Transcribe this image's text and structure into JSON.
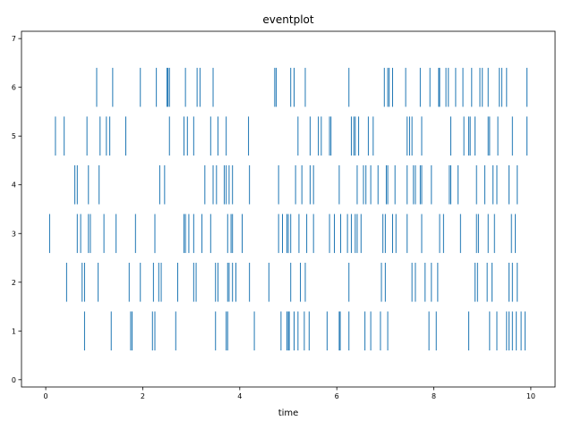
{
  "chart_data": {
    "type": "eventplot",
    "title": "eventplot",
    "xlabel": "time",
    "ylabel": "",
    "xlim": [
      -0.5,
      10.5
    ],
    "ylim": [
      -0.15,
      7.15
    ],
    "x_ticks": [
      0,
      2,
      4,
      6,
      8,
      10
    ],
    "x_tick_labels": [
      "0",
      "2",
      "4",
      "6",
      "8",
      "10"
    ],
    "y_ticks": [
      0,
      1,
      2,
      3,
      4,
      5,
      6,
      7
    ],
    "y_tick_labels": [
      "0",
      "1",
      "2",
      "3",
      "4",
      "5",
      "6",
      "7"
    ],
    "grid": false,
    "line_length": 0.8,
    "color": "#1f77b4",
    "series": [
      {
        "lineoffset": 1,
        "events": [
          0.8,
          1.35,
          1.75,
          1.78,
          2.2,
          2.25,
          2.68,
          3.5,
          3.72,
          3.75,
          4.3,
          4.85,
          4.97,
          5.0,
          5.02,
          5.12,
          5.2,
          5.33,
          5.43,
          5.8,
          6.05,
          6.07,
          6.25,
          6.58,
          6.7,
          6.9,
          7.05,
          7.9,
          8.05,
          8.72,
          9.15,
          9.3,
          9.5,
          9.55,
          9.62,
          9.7,
          9.8,
          9.88
        ]
      },
      {
        "lineoffset": 2,
        "events": [
          0.43,
          0.75,
          0.8,
          1.08,
          1.72,
          1.95,
          2.22,
          2.33,
          2.38,
          2.72,
          3.05,
          3.1,
          3.5,
          3.55,
          3.75,
          3.78,
          3.85,
          3.92,
          4.2,
          4.6,
          5.05,
          5.25,
          5.35,
          6.25,
          6.92,
          7.0,
          7.55,
          7.62,
          7.82,
          7.95,
          8.08,
          8.85,
          8.9,
          9.1,
          9.2,
          9.55,
          9.62,
          9.72
        ]
      },
      {
        "lineoffset": 3,
        "events": [
          0.08,
          0.65,
          0.72,
          0.88,
          0.92,
          1.2,
          1.45,
          1.85,
          2.25,
          2.85,
          2.88,
          2.95,
          3.05,
          3.22,
          3.4,
          3.75,
          3.82,
          3.85,
          4.05,
          4.8,
          4.88,
          4.97,
          5.0,
          5.05,
          5.22,
          5.38,
          5.52,
          5.85,
          5.95,
          6.08,
          6.22,
          6.3,
          6.38,
          6.42,
          6.5,
          6.95,
          7.0,
          7.15,
          7.22,
          7.45,
          7.75,
          8.12,
          8.2,
          8.55,
          8.88,
          8.92,
          9.12,
          9.25,
          9.6,
          9.68
        ]
      },
      {
        "lineoffset": 4,
        "events": [
          0.6,
          0.65,
          0.88,
          1.1,
          2.35,
          2.45,
          3.28,
          3.45,
          3.52,
          3.68,
          3.72,
          3.78,
          3.85,
          4.2,
          4.8,
          5.15,
          5.28,
          5.45,
          5.52,
          6.05,
          6.42,
          6.55,
          6.6,
          6.7,
          6.85,
          7.02,
          7.05,
          7.2,
          7.45,
          7.58,
          7.62,
          7.72,
          7.75,
          7.95,
          8.32,
          8.35,
          8.5,
          8.88,
          9.05,
          9.22,
          9.3,
          9.55,
          9.72
        ]
      },
      {
        "lineoffset": 5,
        "events": [
          0.2,
          0.38,
          0.85,
          1.12,
          1.25,
          1.32,
          1.65,
          2.55,
          2.85,
          2.92,
          3.05,
          3.4,
          3.55,
          3.72,
          4.18,
          5.2,
          5.45,
          5.62,
          5.68,
          5.85,
          5.88,
          6.3,
          6.35,
          6.38,
          6.45,
          6.65,
          6.75,
          7.45,
          7.5,
          7.55,
          7.75,
          8.35,
          8.62,
          8.72,
          8.75,
          8.85,
          9.12,
          9.15,
          9.32,
          9.62,
          9.92
        ]
      },
      {
        "lineoffset": 6,
        "events": [
          1.05,
          1.38,
          1.95,
          2.28,
          2.5,
          2.52,
          2.55,
          2.88,
          3.12,
          3.18,
          3.45,
          4.72,
          4.75,
          5.05,
          5.12,
          5.35,
          6.25,
          6.98,
          7.05,
          7.08,
          7.15,
          7.42,
          7.72,
          7.92,
          8.1,
          8.12,
          8.25,
          8.3,
          8.45,
          8.6,
          8.78,
          8.95,
          9.0,
          9.12,
          9.35,
          9.4,
          9.5,
          9.92
        ]
      }
    ]
  }
}
